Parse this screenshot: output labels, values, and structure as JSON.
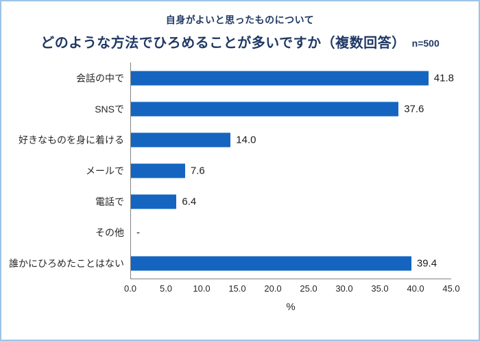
{
  "header": {
    "subtitle": "自身がよいと思ったものについて",
    "title": "どのような方法でひろめることが多いですか（複数回答）",
    "sample_size": "n=500"
  },
  "chart_data": {
    "type": "bar",
    "orientation": "horizontal",
    "title": "どのような方法でひろめることが多いですか（複数回答）",
    "subtitle": "自身がよいと思ったものについて",
    "sample_size": "n=500",
    "categories": [
      "会話の中で",
      "SNSで",
      "好きなものを身に着ける",
      "メールで",
      "電話で",
      "その他",
      "誰かにひろめたことはない"
    ],
    "values": [
      41.8,
      37.6,
      14.0,
      7.6,
      6.4,
      null,
      39.4
    ],
    "value_labels": [
      "41.8",
      "37.6",
      "14.0",
      "7.6",
      "6.4",
      "-",
      "39.4"
    ],
    "xlabel": "%",
    "xlim": [
      0,
      45
    ],
    "xtick_step": 5,
    "xticks": [
      "0.0",
      "5.0",
      "10.0",
      "15.0",
      "20.0",
      "25.0",
      "30.0",
      "35.0",
      "40.0",
      "45.0"
    ],
    "grid": false,
    "legend": "none",
    "colors": {
      "bar": "#1565c0",
      "title_text": "#1f3864",
      "axis_line": "#808080",
      "label_text": "#262626",
      "border": "#9dc3e6"
    }
  }
}
